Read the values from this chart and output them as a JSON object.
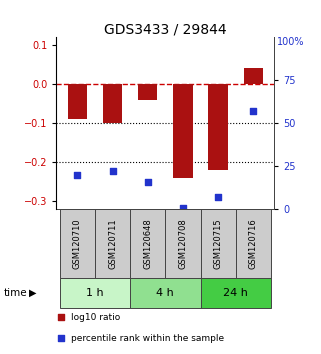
{
  "title": "GDS3433 / 29844",
  "samples": [
    "GSM120710",
    "GSM120711",
    "GSM120648",
    "GSM120708",
    "GSM120715",
    "GSM120716"
  ],
  "log10_ratio": [
    -0.09,
    -0.1,
    -0.04,
    -0.24,
    -0.22,
    0.04
  ],
  "percentile_rank": [
    20,
    22,
    16,
    1,
    7,
    57
  ],
  "groups": [
    {
      "label": "1 h",
      "indices": [
        0,
        1
      ],
      "color": "#c8f5c8"
    },
    {
      "label": "4 h",
      "indices": [
        2,
        3
      ],
      "color": "#90e090"
    },
    {
      "label": "24 h",
      "indices": [
        4,
        5
      ],
      "color": "#44cc44"
    }
  ],
  "bar_color": "#aa1111",
  "dot_color": "#2233cc",
  "ylim_left": [
    -0.32,
    0.12
  ],
  "ylim_right": [
    0,
    100
  ],
  "yticks_left": [
    0.1,
    0.0,
    -0.1,
    -0.2,
    -0.3
  ],
  "yticks_right": [
    75,
    50,
    25,
    0
  ],
  "ytick_right_top": 100,
  "hline_color": "#cc0000",
  "dotline_color": "#000000",
  "title_fontsize": 10,
  "tick_fontsize": 7,
  "group_label_fontsize": 8,
  "sample_fontsize": 6,
  "legend_red": "log10 ratio",
  "legend_blue": "percentile rank within the sample",
  "time_label": "time",
  "sample_box_color": "#cccccc",
  "sample_box_edge": "#444444"
}
